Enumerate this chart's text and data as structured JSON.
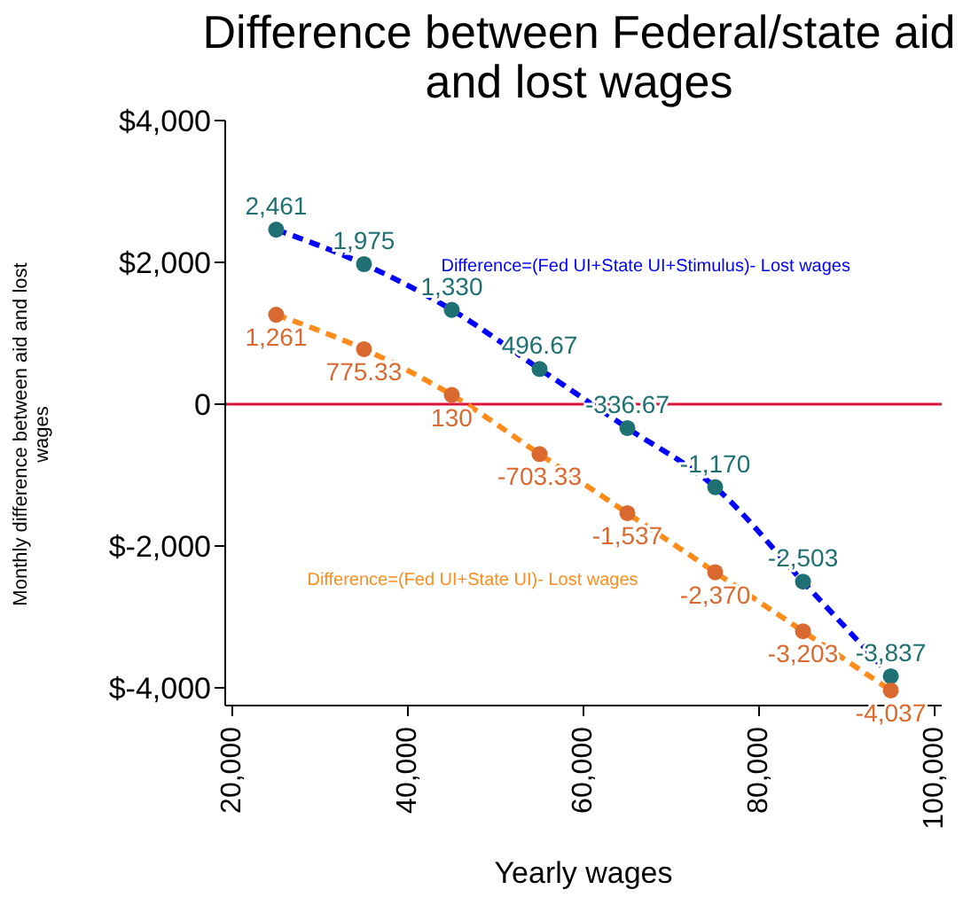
{
  "chart_data": {
    "type": "line",
    "title": "Difference between Federal/state aid and lost wages",
    "xlabel": "Yearly wages",
    "ylabel": "Monthly difference between aid and lost wages",
    "x": [
      25000,
      35000,
      45000,
      55000,
      65000,
      75000,
      85000,
      95000
    ],
    "series": [
      {
        "name": "Difference=(Fed UI+State UI+Stimulus)- Lost wages",
        "color": "#0000ff",
        "line_style": "dashed",
        "marker": "none",
        "values": [
          2461,
          1975,
          1330,
          496.67,
          -336.67,
          -1170,
          -2503,
          -3837
        ]
      },
      {
        "type": "scatter",
        "color": "#1f7072",
        "marker": "circle",
        "values": [
          2461,
          1975,
          1330,
          496.67,
          -336.67,
          -1170,
          -2503,
          -3837
        ],
        "value_labels": [
          "2,461",
          "1,975",
          "1,330",
          "496.67",
          "-336.67",
          "-1,170",
          "-2,503",
          "-3,837"
        ]
      },
      {
        "name": "Difference=(Fed UI+State UI)- Lost wages",
        "color": "#ff8c1a",
        "line_style": "dashed",
        "marker": "none",
        "values": [
          1261,
          775.33,
          130,
          -703.33,
          -1537,
          -2370,
          -3203,
          -4037
        ]
      },
      {
        "type": "scatter",
        "color": "#d9692e",
        "marker": "circle",
        "values": [
          1261,
          775.33,
          130,
          -703.33,
          -1537,
          -2370,
          -3203,
          -4037
        ],
        "value_labels": [
          "1,261",
          "775.33",
          "130",
          "-703.33",
          "-1,537",
          "-2,370",
          "-3,203",
          "-4,037"
        ]
      }
    ],
    "xlim": [
      19200,
      100800
    ],
    "xticks": [
      {
        "value": 20000,
        "label": "20,000"
      },
      {
        "value": 40000,
        "label": "40,000"
      },
      {
        "value": 60000,
        "label": "60,000"
      },
      {
        "value": 80000,
        "label": "80,000"
      },
      {
        "value": 100000,
        "label": "100,000"
      }
    ],
    "ylim": [
      -4250,
      4000
    ],
    "yticks": [
      {
        "value": 4000,
        "label": "$4,000"
      },
      {
        "value": 2000,
        "label": "$2,000"
      },
      0,
      {
        "value": -2000,
        "label": "$-2,000"
      },
      {
        "value": -4000,
        "label": "$-4,000"
      }
    ],
    "ref_lines": [
      {
        "axis": "y",
        "value": 0,
        "color": "#dc143c"
      }
    ],
    "grid": false,
    "legend": false
  }
}
